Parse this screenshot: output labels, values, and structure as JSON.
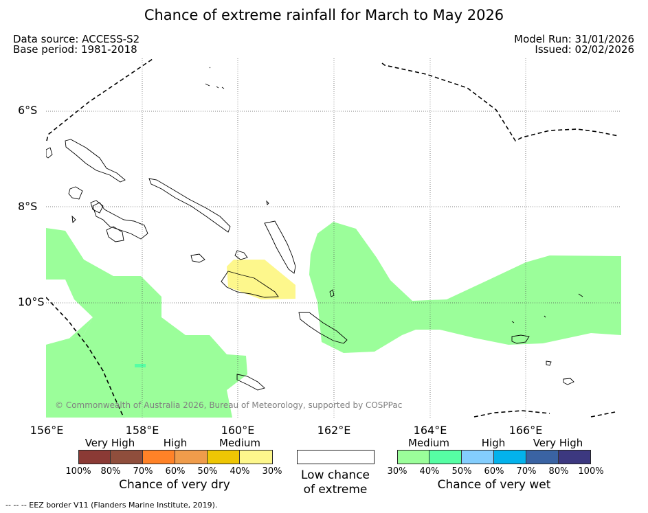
{
  "title": "Chance of extreme rainfall for March to May 2026",
  "meta": {
    "data_source": "Data source: ACCESS-S2",
    "base_period": "Base period: 1981-2018",
    "model_run": "Model Run: 31/01/2026",
    "issued": "Issued: 02/02/2026"
  },
  "axes": {
    "lat_labels": [
      "6°S",
      "8°S",
      "10°S"
    ],
    "lon_labels": [
      "156°E",
      "158°E",
      "160°E",
      "162°E",
      "164°E",
      "166°E"
    ]
  },
  "copyright": "© Commonwealth of Australia 2026, Bureau of Meteorology, supported by COSPPac",
  "legend": {
    "dry": {
      "categories": [
        "Very High",
        "High",
        "Medium"
      ],
      "ticks": [
        "100%",
        "80%",
        "70%",
        "60%",
        "50%",
        "40%",
        "30%"
      ],
      "colors": [
        "#8b3a35",
        "#8f4e3c",
        "#ff8227",
        "#ef9c4b",
        "#eec604",
        "#fdf78c"
      ],
      "caption": "Chance of very dry"
    },
    "low": {
      "caption_line1": "Low chance",
      "caption_line2": "of extreme",
      "color": "#ffffff"
    },
    "wet": {
      "categories": [
        "Medium",
        "High",
        "Very High"
      ],
      "ticks": [
        "30%",
        "40%",
        "50%",
        "60%",
        "70%",
        "80%",
        "100%"
      ],
      "colors": [
        "#9bfe9a",
        "#56fea4",
        "#83cdfd",
        "#03b2ec",
        "#3a63a3",
        "#3c3880"
      ],
      "caption": "Chance of very wet"
    }
  },
  "footer": "--  --  -- EEZ border V11 (Flanders Marine Institute, 2019)."
}
